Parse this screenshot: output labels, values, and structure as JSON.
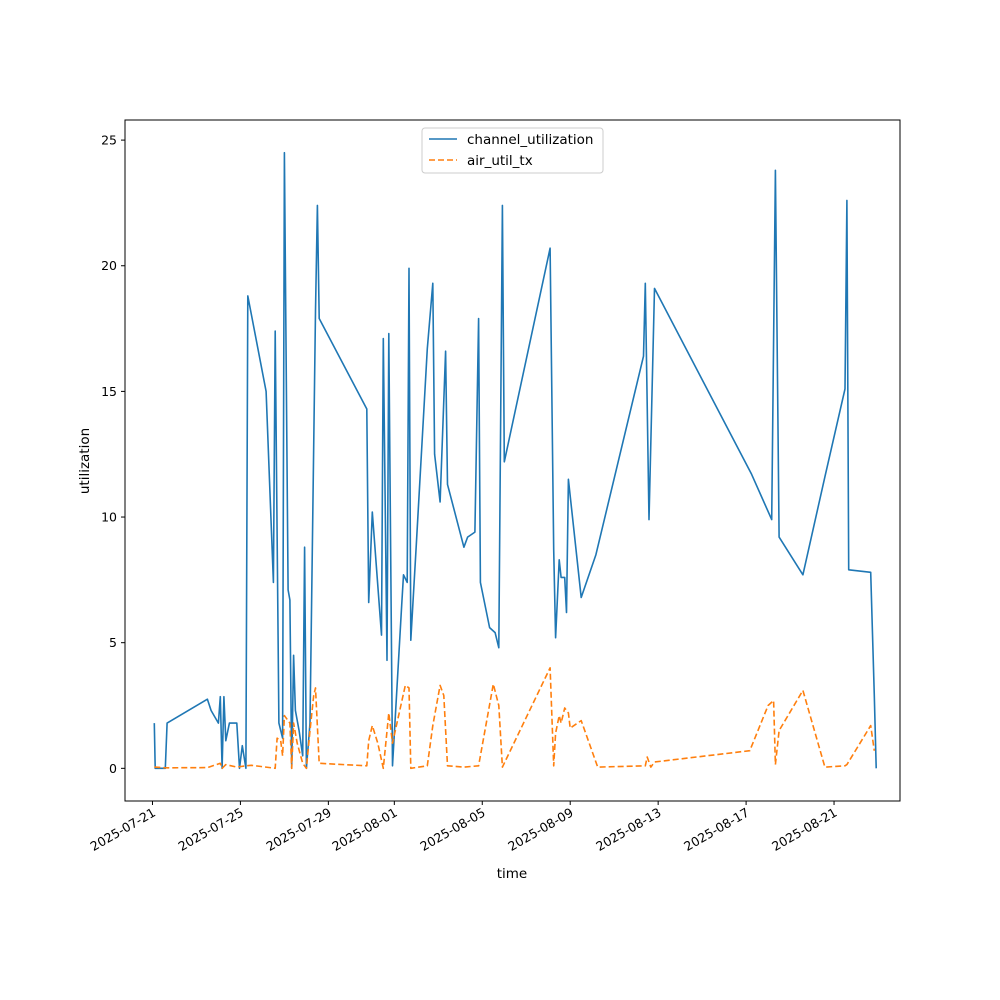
{
  "chart_data": {
    "type": "line",
    "xlabel": "time",
    "ylabel": "utilization",
    "x_ticks": [
      "2025-07-21",
      "2025-07-25",
      "2025-07-29",
      "2025-08-01",
      "2025-08-05",
      "2025-08-09",
      "2025-08-13",
      "2025-08-17",
      "2025-08-21"
    ],
    "y_ticks": [
      0,
      5,
      10,
      15,
      20,
      25
    ],
    "xlim": [
      "2025-07-19T18:00",
      "2025-08-24T00:00"
    ],
    "ylim": [
      -1.3,
      25.8
    ],
    "grid": false,
    "legend_position": "top-center",
    "series": [
      {
        "name": "channel_utilization",
        "color": "#1f77b4",
        "dash": "solid",
        "points": [
          [
            "2025-07-21T02:00",
            1.8
          ],
          [
            "2025-07-21T03:00",
            0
          ],
          [
            "2025-07-21T14:00",
            0
          ],
          [
            "2025-07-21T16:00",
            1.8
          ],
          [
            "2025-07-23T12:00",
            2.75
          ],
          [
            "2025-07-23T16:00",
            2.3
          ],
          [
            "2025-07-24T00:00",
            1.8
          ],
          [
            "2025-07-24T02:00",
            2.85
          ],
          [
            "2025-07-24T04:00",
            0
          ],
          [
            "2025-07-24T06:00",
            2.85
          ],
          [
            "2025-07-24T08:00",
            1.1
          ],
          [
            "2025-07-24T12:00",
            1.8
          ],
          [
            "2025-07-24T20:00",
            1.8
          ],
          [
            "2025-07-24T23:00",
            0
          ],
          [
            "2025-07-25T02:00",
            0.9
          ],
          [
            "2025-07-25T06:00",
            0
          ],
          [
            "2025-07-25T08:00",
            18.8
          ],
          [
            "2025-07-26T04:00",
            15
          ],
          [
            "2025-07-26T12:00",
            7.4
          ],
          [
            "2025-07-26T14:00",
            17.4
          ],
          [
            "2025-07-26T18:00",
            1.8
          ],
          [
            "2025-07-26T22:00",
            1.2
          ],
          [
            "2025-07-27T00:00",
            24.5
          ],
          [
            "2025-07-27T04:00",
            7.1
          ],
          [
            "2025-07-27T06:00",
            6.7
          ],
          [
            "2025-07-27T08:00",
            0
          ],
          [
            "2025-07-27T10:00",
            4.5
          ],
          [
            "2025-07-27T12:00",
            2.3
          ],
          [
            "2025-07-27T16:00",
            1.5
          ],
          [
            "2025-07-27T20:00",
            0.5
          ],
          [
            "2025-07-27T22:00",
            8.8
          ],
          [
            "2025-07-28T00:00",
            0
          ],
          [
            "2025-07-28T04:00",
            1.8
          ],
          [
            "2025-07-28T10:00",
            18.2
          ],
          [
            "2025-07-28T12:00",
            22.4
          ],
          [
            "2025-07-28T14:00",
            17.9
          ],
          [
            "2025-07-30T18:00",
            14.3
          ],
          [
            "2025-07-30T20:00",
            6.6
          ],
          [
            "2025-07-31T00:00",
            10.2
          ],
          [
            "2025-07-31T10:00",
            5.3
          ],
          [
            "2025-07-31T12:00",
            17.1
          ],
          [
            "2025-07-31T16:00",
            4.3
          ],
          [
            "2025-07-31T18:00",
            17.3
          ],
          [
            "2025-07-31T22:00",
            0.1
          ],
          [
            "2025-08-01T08:00",
            6.5
          ],
          [
            "2025-08-01T10:00",
            7.7
          ],
          [
            "2025-08-01T14:00",
            7.4
          ],
          [
            "2025-08-01T16:00",
            19.9
          ],
          [
            "2025-08-01T18:00",
            5.1
          ],
          [
            "2025-08-02T00:00",
            8.9
          ],
          [
            "2025-08-02T12:00",
            16.7
          ],
          [
            "2025-08-02T18:00",
            19.3
          ],
          [
            "2025-08-02T20:00",
            12.5
          ],
          [
            "2025-08-03T02:00",
            10.6
          ],
          [
            "2025-08-03T08:00",
            16.6
          ],
          [
            "2025-08-03T10:00",
            11.3
          ],
          [
            "2025-08-04T04:00",
            8.8
          ],
          [
            "2025-08-04T08:00",
            9.2
          ],
          [
            "2025-08-04T16:00",
            9.4
          ],
          [
            "2025-08-04T20:00",
            17.9
          ],
          [
            "2025-08-04T22:00",
            7.4
          ],
          [
            "2025-08-05T08:00",
            5.6
          ],
          [
            "2025-08-05T14:00",
            5.4
          ],
          [
            "2025-08-05T18:00",
            4.8
          ],
          [
            "2025-08-05T22:00",
            22.4
          ],
          [
            "2025-08-06T00:00",
            12.2
          ],
          [
            "2025-08-08T02:00",
            20.7
          ],
          [
            "2025-08-08T06:00",
            8.7
          ],
          [
            "2025-08-08T08:00",
            5.2
          ],
          [
            "2025-08-08T12:00",
            8.3
          ],
          [
            "2025-08-08T14:00",
            7.6
          ],
          [
            "2025-08-08T18:00",
            7.6
          ],
          [
            "2025-08-08T20:00",
            6.2
          ],
          [
            "2025-08-08T22:00",
            11.5
          ],
          [
            "2025-08-09T12:00",
            6.8
          ],
          [
            "2025-08-10T04:00",
            8.5
          ],
          [
            "2025-08-12T08:00",
            16.4
          ],
          [
            "2025-08-12T10:00",
            19.3
          ],
          [
            "2025-08-12T14:00",
            9.9
          ],
          [
            "2025-08-12T20:00",
            19.1
          ],
          [
            "2025-08-17T06:00",
            11.7
          ],
          [
            "2025-08-18T04:00",
            9.9
          ],
          [
            "2025-08-18T08:00",
            23.8
          ],
          [
            "2025-08-18T12:00",
            9.2
          ],
          [
            "2025-08-19T14:00",
            7.7
          ],
          [
            "2025-08-20T14:00",
            11.6
          ],
          [
            "2025-08-21T12:00",
            15.1
          ],
          [
            "2025-08-21T14:00",
            22.6
          ],
          [
            "2025-08-21T16:00",
            7.9
          ],
          [
            "2025-08-22T16:00",
            7.8
          ],
          [
            "2025-08-22T20:00",
            2.9
          ],
          [
            "2025-08-22T22:00",
            0
          ]
        ]
      },
      {
        "name": "air_util_tx",
        "color": "#ff7f0e",
        "dash": "dashed",
        "points": [
          [
            "2025-07-21T02:00",
            0.05
          ],
          [
            "2025-07-21T14:00",
            0.02
          ],
          [
            "2025-07-23T12:00",
            0.03
          ],
          [
            "2025-07-24T02:00",
            0.2
          ],
          [
            "2025-07-24T04:00",
            0.0
          ],
          [
            "2025-07-24T08:00",
            0.15
          ],
          [
            "2025-07-24T20:00",
            0.05
          ],
          [
            "2025-07-25T06:00",
            0.1
          ],
          [
            "2025-07-25T12:00",
            0.12
          ],
          [
            "2025-07-26T14:00",
            0.0
          ],
          [
            "2025-07-26T16:00",
            1.2
          ],
          [
            "2025-07-26T20:00",
            1.1
          ],
          [
            "2025-07-26T22:00",
            0.5
          ],
          [
            "2025-07-27T00:00",
            2.1
          ],
          [
            "2025-07-27T06:00",
            1.8
          ],
          [
            "2025-07-27T08:00",
            0.0
          ],
          [
            "2025-07-27T10:00",
            1.8
          ],
          [
            "2025-07-27T14:00",
            1.0
          ],
          [
            "2025-07-27T20:00",
            0.2
          ],
          [
            "2025-07-28T00:00",
            0.0
          ],
          [
            "2025-07-28T04:00",
            1.5
          ],
          [
            "2025-07-28T08:00",
            2.9
          ],
          [
            "2025-07-28T10:00",
            3.2
          ],
          [
            "2025-07-28T14:00",
            0.2
          ],
          [
            "2025-07-30T18:00",
            0.1
          ],
          [
            "2025-07-30T20:00",
            1.1
          ],
          [
            "2025-07-31T00:00",
            1.7
          ],
          [
            "2025-07-31T06:00",
            1.0
          ],
          [
            "2025-07-31T12:00",
            0.0
          ],
          [
            "2025-07-31T18:00",
            2.2
          ],
          [
            "2025-07-31T22:00",
            1.0
          ],
          [
            "2025-08-01T12:00",
            3.3
          ],
          [
            "2025-08-01T16:00",
            3.2
          ],
          [
            "2025-08-01T18:00",
            0.0
          ],
          [
            "2025-08-02T12:00",
            0.1
          ],
          [
            "2025-08-02T18:00",
            1.7
          ],
          [
            "2025-08-03T02:00",
            3.3
          ],
          [
            "2025-08-03T06:00",
            2.9
          ],
          [
            "2025-08-03T10:00",
            0.1
          ],
          [
            "2025-08-04T04:00",
            0.05
          ],
          [
            "2025-08-04T20:00",
            0.1
          ],
          [
            "2025-08-05T12:00",
            3.35
          ],
          [
            "2025-08-05T18:00",
            2.5
          ],
          [
            "2025-08-05T22:00",
            0.05
          ],
          [
            "2025-08-08T02:00",
            4.0
          ],
          [
            "2025-08-08T06:00",
            0.1
          ],
          [
            "2025-08-08T08:00",
            1.4
          ],
          [
            "2025-08-08T12:00",
            2.1
          ],
          [
            "2025-08-08T14:00",
            1.8
          ],
          [
            "2025-08-08T18:00",
            2.4
          ],
          [
            "2025-08-08T22:00",
            2.2
          ],
          [
            "2025-08-09T00:00",
            1.6
          ],
          [
            "2025-08-09T12:00",
            1.9
          ],
          [
            "2025-08-10T06:00",
            0.05
          ],
          [
            "2025-08-12T10:00",
            0.1
          ],
          [
            "2025-08-12T12:00",
            0.45
          ],
          [
            "2025-08-12T16:00",
            0.05
          ],
          [
            "2025-08-12T20:00",
            0.25
          ],
          [
            "2025-08-17T04:00",
            0.7
          ],
          [
            "2025-08-18T00:00",
            2.5
          ],
          [
            "2025-08-18T06:00",
            2.7
          ],
          [
            "2025-08-18T08:00",
            0.15
          ],
          [
            "2025-08-18T12:00",
            1.5
          ],
          [
            "2025-08-19T14:00",
            3.1
          ],
          [
            "2025-08-20T14:00",
            0.05
          ],
          [
            "2025-08-21T12:00",
            0.1
          ],
          [
            "2025-08-21T14:00",
            0.15
          ],
          [
            "2025-08-22T16:00",
            1.7
          ],
          [
            "2025-08-22T20:00",
            0.7
          ]
        ]
      }
    ]
  }
}
